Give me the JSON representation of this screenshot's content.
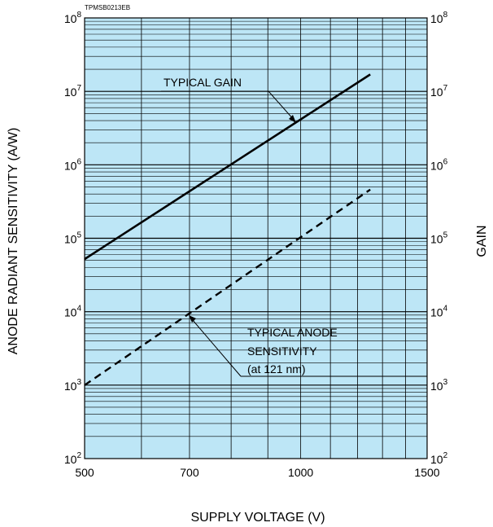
{
  "chart_data": {
    "type": "line",
    "figure_code": "TPMSB0213EB",
    "x_scale": "log",
    "y_scale": "log",
    "xlim": [
      500,
      1500
    ],
    "ylim": [
      100,
      100000000
    ],
    "grid": true,
    "background_color": "#bde6f6",
    "line_color": "#000000",
    "xlabel": "SUPPLY VOLTAGE (V)",
    "ylabel_left": "ANODE RADIANT SENSITIVITY (A/W)",
    "ylabel_right": "GAIN",
    "x_ticks": [
      {
        "value": 500,
        "label": "500"
      },
      {
        "value": 700,
        "label": "700"
      },
      {
        "value": 1000,
        "label": "1000"
      },
      {
        "value": 1500,
        "label": "1500"
      }
    ],
    "y_ticks": [
      {
        "value": 100,
        "base": "10",
        "exp": "2"
      },
      {
        "value": 1000,
        "base": "10",
        "exp": "3"
      },
      {
        "value": 10000,
        "base": "10",
        "exp": "4"
      },
      {
        "value": 100000,
        "base": "10",
        "exp": "5"
      },
      {
        "value": 1000000,
        "base": "10",
        "exp": "6"
      },
      {
        "value": 10000000,
        "base": "10",
        "exp": "7"
      },
      {
        "value": 100000000,
        "base": "10",
        "exp": "8"
      }
    ],
    "series": [
      {
        "name": "TYPICAL GAIN",
        "style": "solid",
        "x": [
          500,
          1250
        ],
        "y": [
          52000,
          17000000
        ]
      },
      {
        "name": "TYPICAL ANODE SENSITIVITY (at 121 nm)",
        "style": "dashed",
        "x": [
          500,
          1250
        ],
        "y": [
          1000,
          460000
        ]
      }
    ],
    "annotations": {
      "gain_label": "TYPICAL GAIN",
      "anode_line1": "TYPICAL ANODE",
      "anode_line2": "SENSITIVITY",
      "anode_line3": "(at 121 nm)"
    }
  }
}
